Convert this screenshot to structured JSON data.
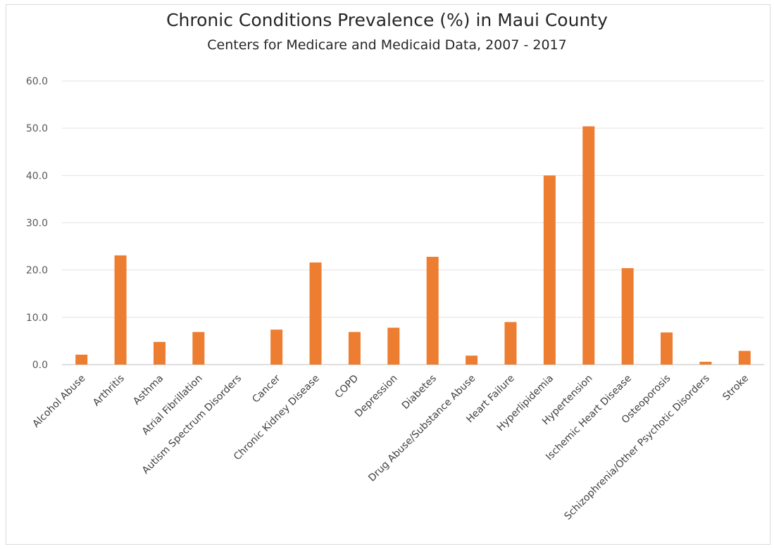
{
  "chart_data": {
    "type": "bar",
    "title": "Chronic Conditions Prevalence (%) in Maui County",
    "subtitle": "Centers for Medicare and Medicaid Data, 2007 - 2017",
    "xlabel": "",
    "ylabel": "",
    "ylim": [
      0,
      60
    ],
    "yticks": [
      "0.0",
      "10.0",
      "20.0",
      "30.0",
      "40.0",
      "50.0",
      "60.0"
    ],
    "grid": true,
    "legend": "none",
    "bar_color": "#ED7D31",
    "grid_color": "#e3e3e3",
    "categories": [
      "Alcohol Abuse",
      "Arthritis",
      "Asthma",
      "Atrial Fibrillation",
      "Autism Spectrum Disorders",
      "Cancer",
      "Chronic Kidney Disease",
      "COPD",
      "Depression",
      "Diabetes",
      "Drug Abuse/Substance Abuse",
      "Heart Failure",
      "Hyperlipidemia",
      "Hypertension",
      "Ischemic Heart Disease",
      "Osteoporosis",
      "Schizophrenia/Other Psychotic Disorders",
      "Stroke"
    ],
    "values": [
      2.1,
      23.1,
      4.8,
      6.9,
      0.0,
      7.4,
      21.6,
      6.9,
      7.8,
      22.8,
      1.9,
      9.0,
      40.0,
      50.4,
      20.4,
      6.8,
      0.6,
      2.9
    ]
  }
}
